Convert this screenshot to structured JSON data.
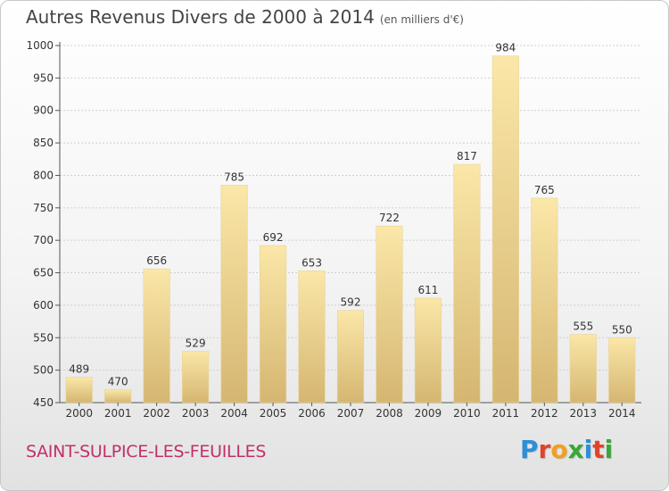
{
  "header": {
    "title": "Autres Revenus Divers de 2000 à 2014",
    "subtitle": "(en milliers d'€)"
  },
  "footer": {
    "town": "SAINT-SULPICE-LES-FEUILLES",
    "logo_letters": [
      "P",
      "r",
      "o",
      "x",
      "i",
      "t",
      "i"
    ],
    "logo_colors": [
      "#2a8fd6",
      "#e0442a",
      "#f0a020",
      "#3aa63a",
      "#2a8fd6",
      "#e0442a",
      "#3aa63a"
    ]
  },
  "chart_data": {
    "type": "bar",
    "title": "Autres Revenus Divers de 2000 à 2014",
    "subtitle": "(en milliers d'€)",
    "categories": [
      "2000",
      "2001",
      "2002",
      "2003",
      "2004",
      "2005",
      "2006",
      "2007",
      "2008",
      "2009",
      "2010",
      "2011",
      "2012",
      "2013",
      "2014"
    ],
    "values": [
      489,
      470,
      656,
      529,
      785,
      692,
      653,
      592,
      722,
      611,
      817,
      984,
      765,
      555,
      550
    ],
    "ylim": [
      450,
      1000
    ],
    "yticks": [
      450,
      500,
      550,
      600,
      650,
      700,
      750,
      800,
      850,
      900,
      950,
      1000
    ],
    "grid": true,
    "bar_color_light": "#fbe7a8",
    "bar_color_dark": "#d5b671",
    "grid_color": "#cfcfcf"
  }
}
